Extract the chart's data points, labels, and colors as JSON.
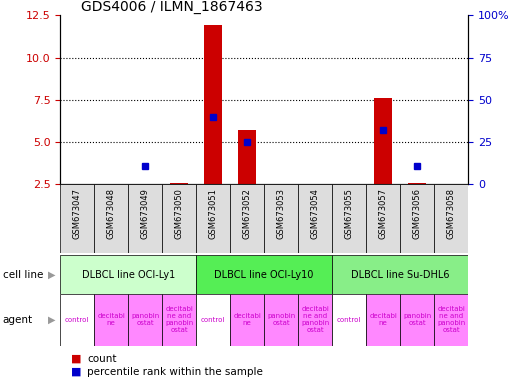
{
  "title": "GDS4006 / ILMN_1867463",
  "samples": [
    "GSM673047",
    "GSM673048",
    "GSM673049",
    "GSM673050",
    "GSM673051",
    "GSM673052",
    "GSM673053",
    "GSM673054",
    "GSM673055",
    "GSM673057",
    "GSM673056",
    "GSM673058"
  ],
  "count_values": [
    0,
    0,
    0,
    2.6,
    11.9,
    5.7,
    0,
    0,
    0,
    7.6,
    2.6,
    0
  ],
  "percentile_values": [
    0,
    0,
    3.6,
    0,
    6.5,
    5.0,
    0,
    0,
    0,
    5.7,
    3.6,
    0
  ],
  "percentile_has_value": [
    false,
    false,
    true,
    false,
    true,
    true,
    false,
    false,
    false,
    true,
    true,
    false
  ],
  "ylim_left": [
    2.5,
    12.5
  ],
  "ylim_right": [
    0,
    100
  ],
  "yticks_left": [
    2.5,
    5.0,
    7.5,
    10.0,
    12.5
  ],
  "yticks_right": [
    0,
    25,
    50,
    75,
    100
  ],
  "ytick_labels_right": [
    "0",
    "25",
    "50",
    "75",
    "100%"
  ],
  "count_color": "#cc0000",
  "percentile_color": "#0000cc",
  "bar_width": 0.55,
  "cell_line_groups": [
    {
      "label": "DLBCL line OCI-Ly1",
      "start": 0,
      "end": 3,
      "color": "#ccffcc"
    },
    {
      "label": "DLBCL line OCI-Ly10",
      "start": 4,
      "end": 7,
      "color": "#55ee55"
    },
    {
      "label": "DLBCL line Su-DHL6",
      "start": 8,
      "end": 11,
      "color": "#88ee88"
    }
  ],
  "agent_labels": [
    "control",
    "decitabi\nne",
    "panobin\nostat",
    "decitabi\nne and\npanobin\nostat",
    "control",
    "decitabi\nne",
    "panobin\nostat",
    "decitabi\nne and\npanobin\nostat",
    "control",
    "decitabi\nne",
    "panobin\nostat",
    "decitabi\nne and\npanobin\nostat"
  ],
  "agent_colors": [
    "#ffffff",
    "#ff88ff",
    "#ff88ff",
    "#ff88ff",
    "#ffffff",
    "#ff88ff",
    "#ff88ff",
    "#ff88ff",
    "#ffffff",
    "#ff88ff",
    "#ff88ff",
    "#ff88ff"
  ],
  "background_color": "#ffffff",
  "tick_label_color_left": "#cc0000",
  "tick_label_color_right": "#0000cc",
  "sample_bg_color": "#dddddd",
  "cell_line_label_color": "#000000",
  "agent_text_color": "#cc00cc"
}
